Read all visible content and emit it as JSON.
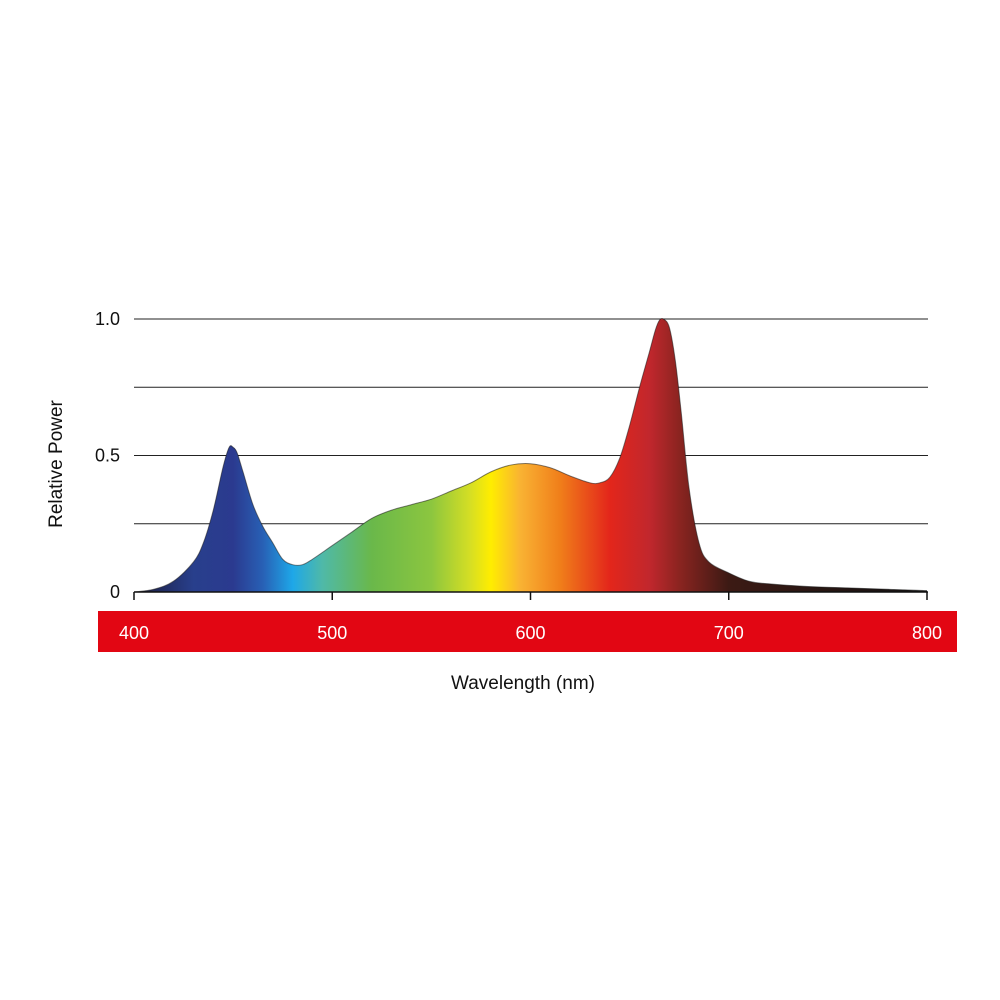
{
  "chart_data": {
    "type": "area",
    "title": "",
    "xlabel": "Wavelength (nm)",
    "ylabel": "Relative Power",
    "xlim": [
      400,
      800
    ],
    "ylim": [
      0,
      1.0
    ],
    "x_ticks": [
      400,
      500,
      600,
      700,
      800
    ],
    "x_tick_labels": [
      "400",
      "500",
      "600",
      "700",
      "800"
    ],
    "y_ticks": [
      0,
      0.5,
      1.0
    ],
    "y_tick_labels": [
      "0",
      "0.5",
      "1.0"
    ],
    "gridlines": [
      0.25,
      0.5,
      0.75,
      1.0
    ],
    "grid": true,
    "legend": "none",
    "axis_band_color": "#e20613",
    "axis_label_color": "#ffffff",
    "series": [
      {
        "x": [
          400,
          410,
          420,
          430,
          435,
          440,
          445,
          448,
          450,
          452,
          455,
          460,
          465,
          470,
          475,
          480,
          485,
          490,
          500,
          510,
          520,
          530,
          540,
          550,
          560,
          570,
          580,
          590,
          600,
          610,
          620,
          630,
          635,
          640,
          645,
          650,
          655,
          660,
          663,
          665,
          667,
          670,
          673,
          676,
          680,
          685,
          690,
          700,
          710,
          720,
          740,
          760,
          780,
          800
        ],
        "y": [
          0.0,
          0.01,
          0.04,
          0.11,
          0.18,
          0.3,
          0.46,
          0.53,
          0.53,
          0.51,
          0.44,
          0.32,
          0.24,
          0.18,
          0.12,
          0.1,
          0.1,
          0.12,
          0.17,
          0.22,
          0.27,
          0.3,
          0.32,
          0.34,
          0.37,
          0.4,
          0.44,
          0.465,
          0.47,
          0.455,
          0.425,
          0.4,
          0.4,
          0.42,
          0.49,
          0.61,
          0.75,
          0.88,
          0.96,
          0.995,
          1.0,
          0.97,
          0.85,
          0.66,
          0.38,
          0.18,
          0.11,
          0.07,
          0.04,
          0.03,
          0.02,
          0.015,
          0.01,
          0.005
        ]
      }
    ],
    "spectrum_colors": [
      {
        "nm": 400,
        "color": "#1b1b3a"
      },
      {
        "nm": 430,
        "color": "#283f8c"
      },
      {
        "nm": 450,
        "color": "#2b3a8f"
      },
      {
        "nm": 465,
        "color": "#2860b5"
      },
      {
        "nm": 480,
        "color": "#1ea7e8"
      },
      {
        "nm": 495,
        "color": "#4fb9a8"
      },
      {
        "nm": 520,
        "color": "#6ab84a"
      },
      {
        "nm": 550,
        "color": "#8cc63f"
      },
      {
        "nm": 570,
        "color": "#d7df23"
      },
      {
        "nm": 580,
        "color": "#ffed00"
      },
      {
        "nm": 595,
        "color": "#f9b233"
      },
      {
        "nm": 615,
        "color": "#f07e1a"
      },
      {
        "nm": 640,
        "color": "#e3261b"
      },
      {
        "nm": 660,
        "color": "#c1272d"
      },
      {
        "nm": 675,
        "color": "#8b2420"
      },
      {
        "nm": 700,
        "color": "#3c1a14"
      },
      {
        "nm": 800,
        "color": "#111111"
      }
    ]
  }
}
